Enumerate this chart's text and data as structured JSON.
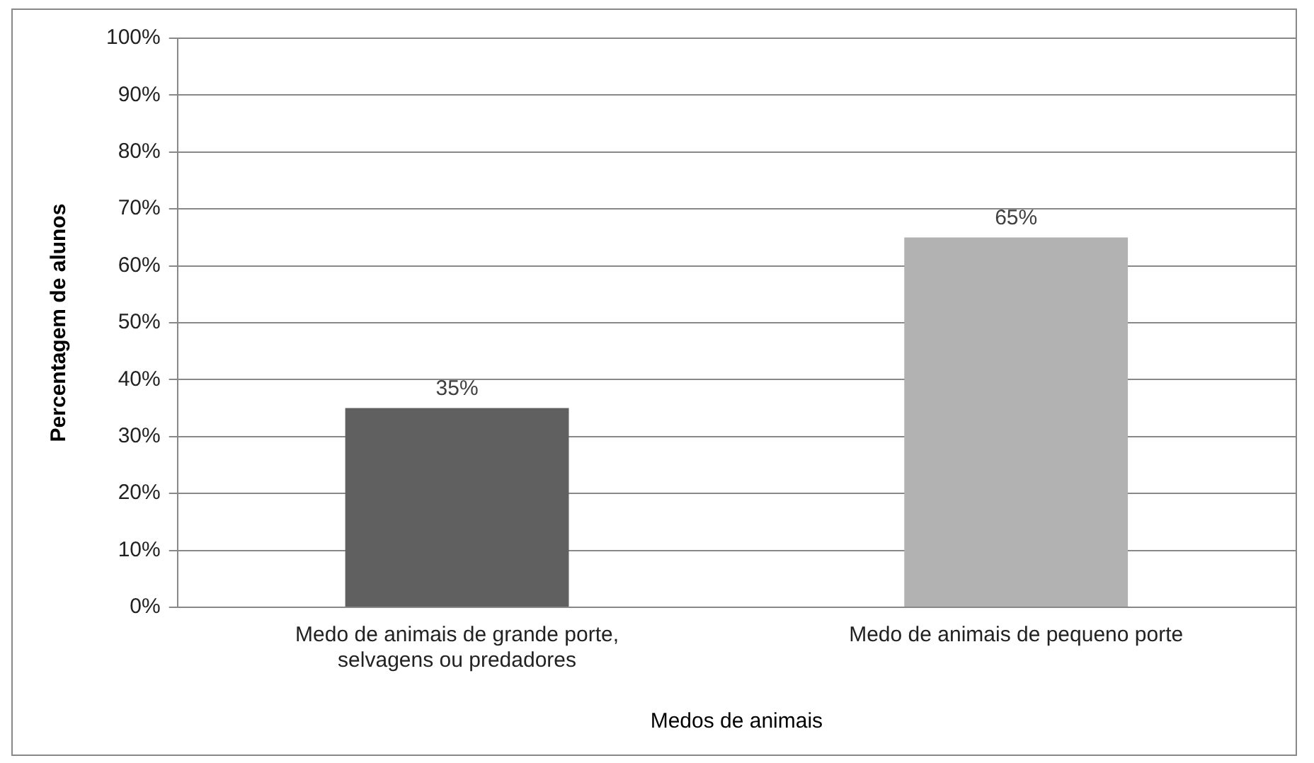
{
  "chart_data": {
    "type": "bar",
    "xlabel": "Medos de animais",
    "ylabel": "Percentagem de alunos",
    "categories": [
      "Medo de animais de grande porte, selvagens ou predadores",
      "Medo de animais de pequeno porte"
    ],
    "values": [
      35,
      65
    ],
    "colors": [
      "#606060",
      "#b2b2b2"
    ],
    "value_labels": [
      "35%",
      "65%"
    ],
    "ylim": [
      0,
      100
    ],
    "yticks": [
      {
        "value": 0,
        "label": "0%"
      },
      {
        "value": 10,
        "label": "10%"
      },
      {
        "value": 20,
        "label": "20%"
      },
      {
        "value": 30,
        "label": "30%"
      },
      {
        "value": 40,
        "label": "40%"
      },
      {
        "value": 50,
        "label": "50%"
      },
      {
        "value": 60,
        "label": "60%"
      },
      {
        "value": 70,
        "label": "70%"
      },
      {
        "value": 80,
        "label": "80%"
      },
      {
        "value": 90,
        "label": "90%"
      },
      {
        "value": 100,
        "label": "100%"
      }
    ],
    "grid": "y",
    "legend": false
  }
}
